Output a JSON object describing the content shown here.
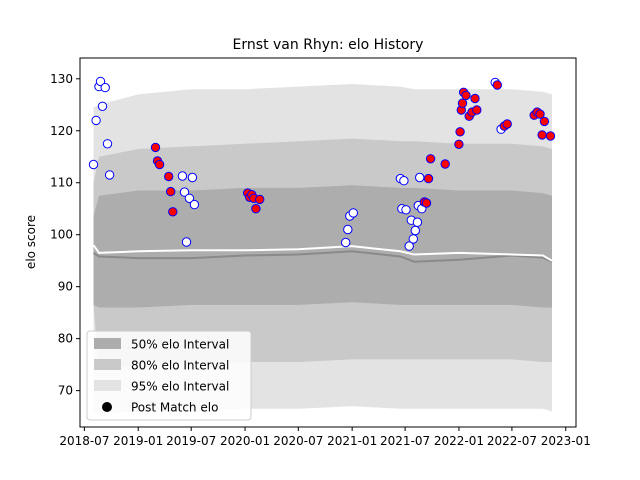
{
  "chart_data": {
    "type": "scatter",
    "title": "Ernst van Rhyn: elo History",
    "xlabel": "",
    "ylabel": "elo score",
    "xlim": [
      "2018-06-16",
      "2023-02-05"
    ],
    "ylim": [
      63,
      134
    ],
    "x_ticks": [
      "2018-07",
      "2019-01",
      "2019-07",
      "2020-01",
      "2020-07",
      "2021-01",
      "2021-07",
      "2022-01",
      "2022-07",
      "2023-01"
    ],
    "y_ticks": [
      70,
      80,
      90,
      100,
      110,
      120,
      130
    ],
    "grid": false,
    "legend": {
      "placement": "lower-left",
      "entries": [
        "50% elo Interval",
        "80% elo Interval",
        "95% elo Interval",
        "Post Match elo"
      ]
    },
    "colors": {
      "band_50": "#adadad",
      "band_80": "#c9c9c9",
      "band_95": "#e3e3e3",
      "median_line": "#8a8a8a",
      "mean_line": "#ffffff",
      "point_edge": "#0000ff",
      "point_fill_win": "#ff0000",
      "point_fill_other": "#ffffff"
    },
    "intervals": {
      "x": [
        "2018-08-01",
        "2018-08-20",
        "2019-01-01",
        "2019-07-01",
        "2020-01-01",
        "2020-07-01",
        "2021-01-01",
        "2021-06-15",
        "2021-08-01",
        "2022-01-01",
        "2022-07-01",
        "2022-10-15",
        "2022-11-15"
      ],
      "p95_low": [
        65.5,
        65.5,
        66.0,
        66.0,
        66.5,
        66.5,
        67.0,
        66.5,
        66.5,
        66.5,
        66.5,
        66.5,
        66.0
      ],
      "p95_high": [
        124.5,
        125.0,
        127.0,
        128.0,
        128.0,
        128.5,
        129.0,
        128.5,
        128.0,
        128.0,
        128.0,
        127.5,
        127.0
      ],
      "p80_low": [
        86.5,
        74.0,
        75.0,
        75.5,
        75.5,
        75.5,
        76.0,
        76.0,
        76.0,
        76.0,
        76.0,
        75.5,
        75.5
      ],
      "p80_high": [
        110.0,
        115.0,
        116.5,
        117.0,
        117.5,
        118.0,
        118.5,
        118.0,
        118.0,
        117.5,
        117.5,
        117.0,
        116.5
      ],
      "p50_low": [
        86.5,
        86.0,
        86.0,
        86.5,
        86.5,
        86.5,
        87.0,
        86.5,
        86.5,
        86.5,
        86.5,
        86.0,
        86.0
      ],
      "p50_high": [
        103.5,
        107.5,
        108.5,
        108.5,
        109.0,
        109.0,
        109.5,
        109.0,
        109.0,
        108.5,
        108.5,
        108.0,
        107.5
      ],
      "median": [
        96.5,
        95.8,
        95.5,
        95.5,
        96.0,
        96.2,
        96.8,
        95.8,
        94.8,
        95.2,
        96.0,
        95.6,
        94.8
      ],
      "mean": [
        98.0,
        96.5,
        96.8,
        97.0,
        97.0,
        97.2,
        97.8,
        96.8,
        96.2,
        96.5,
        96.2,
        96.0,
        95.0
      ]
    },
    "series": [
      {
        "name": "Post Match elo",
        "points": [
          {
            "x": "2018-08-01",
            "y": 113.5,
            "win": false
          },
          {
            "x": "2018-08-10",
            "y": 122.0,
            "win": false
          },
          {
            "x": "2018-08-20",
            "y": 128.5,
            "win": false
          },
          {
            "x": "2018-08-25",
            "y": 129.5,
            "win": false
          },
          {
            "x": "2018-09-01",
            "y": 124.7,
            "win": false
          },
          {
            "x": "2018-09-10",
            "y": 128.3,
            "win": false
          },
          {
            "x": "2018-09-18",
            "y": 117.5,
            "win": false
          },
          {
            "x": "2018-09-25",
            "y": 111.5,
            "win": false
          },
          {
            "x": "2019-03-01",
            "y": 116.8,
            "win": true
          },
          {
            "x": "2019-03-08",
            "y": 114.2,
            "win": true
          },
          {
            "x": "2019-03-15",
            "y": 113.5,
            "win": true
          },
          {
            "x": "2019-04-15",
            "y": 111.2,
            "win": true
          },
          {
            "x": "2019-04-22",
            "y": 108.3,
            "win": true
          },
          {
            "x": "2019-04-29",
            "y": 104.4,
            "win": true
          },
          {
            "x": "2019-06-01",
            "y": 111.3,
            "win": false
          },
          {
            "x": "2019-06-08",
            "y": 108.2,
            "win": false
          },
          {
            "x": "2019-06-15",
            "y": 98.6,
            "win": false
          },
          {
            "x": "2019-06-25",
            "y": 107.0,
            "win": false
          },
          {
            "x": "2019-07-05",
            "y": 111.0,
            "win": false
          },
          {
            "x": "2019-07-12",
            "y": 105.8,
            "win": false
          },
          {
            "x": "2020-01-10",
            "y": 108.0,
            "win": true
          },
          {
            "x": "2020-01-17",
            "y": 107.2,
            "win": true
          },
          {
            "x": "2020-01-24",
            "y": 107.7,
            "win": true
          },
          {
            "x": "2020-01-31",
            "y": 107.0,
            "win": true
          },
          {
            "x": "2020-02-07",
            "y": 105.0,
            "win": true
          },
          {
            "x": "2020-02-20",
            "y": 106.8,
            "win": true
          },
          {
            "x": "2020-12-10",
            "y": 98.5,
            "win": false
          },
          {
            "x": "2020-12-17",
            "y": 101.0,
            "win": false
          },
          {
            "x": "2020-12-24",
            "y": 103.6,
            "win": false
          },
          {
            "x": "2021-01-05",
            "y": 104.2,
            "win": false
          },
          {
            "x": "2021-06-15",
            "y": 110.8,
            "win": false
          },
          {
            "x": "2021-06-20",
            "y": 105.0,
            "win": false
          },
          {
            "x": "2021-06-27",
            "y": 110.4,
            "win": false
          },
          {
            "x": "2021-07-04",
            "y": 104.8,
            "win": false
          },
          {
            "x": "2021-07-15",
            "y": 97.8,
            "win": false
          },
          {
            "x": "2021-07-22",
            "y": 102.8,
            "win": false
          },
          {
            "x": "2021-07-29",
            "y": 99.2,
            "win": false
          },
          {
            "x": "2021-08-05",
            "y": 100.8,
            "win": false
          },
          {
            "x": "2021-08-12",
            "y": 102.4,
            "win": false
          },
          {
            "x": "2021-08-15",
            "y": 105.6,
            "win": false
          },
          {
            "x": "2021-08-20",
            "y": 111.0,
            "win": false
          },
          {
            "x": "2021-08-27",
            "y": 105.0,
            "win": false
          },
          {
            "x": "2021-09-05",
            "y": 106.3,
            "win": true
          },
          {
            "x": "2021-09-12",
            "y": 106.1,
            "win": true
          },
          {
            "x": "2021-09-19",
            "y": 110.8,
            "win": true
          },
          {
            "x": "2021-09-26",
            "y": 114.6,
            "win": true
          },
          {
            "x": "2021-11-15",
            "y": 113.6,
            "win": true
          },
          {
            "x": "2022-01-01",
            "y": 117.4,
            "win": true
          },
          {
            "x": "2022-01-05",
            "y": 119.8,
            "win": true
          },
          {
            "x": "2022-01-09",
            "y": 124.0,
            "win": true
          },
          {
            "x": "2022-01-13",
            "y": 125.3,
            "win": true
          },
          {
            "x": "2022-01-17",
            "y": 127.4,
            "win": true
          },
          {
            "x": "2022-01-25",
            "y": 126.8,
            "win": true
          },
          {
            "x": "2022-02-05",
            "y": 122.8,
            "win": true
          },
          {
            "x": "2022-02-15",
            "y": 123.6,
            "win": true
          },
          {
            "x": "2022-02-25",
            "y": 126.2,
            "win": true
          },
          {
            "x": "2022-03-03",
            "y": 124.0,
            "win": true
          },
          {
            "x": "2022-05-05",
            "y": 129.3,
            "win": false
          },
          {
            "x": "2022-05-12",
            "y": 128.8,
            "win": true
          },
          {
            "x": "2022-05-25",
            "y": 120.3,
            "win": false
          },
          {
            "x": "2022-06-05",
            "y": 120.9,
            "win": true
          },
          {
            "x": "2022-06-15",
            "y": 121.3,
            "win": true
          },
          {
            "x": "2022-09-15",
            "y": 123.0,
            "win": true
          },
          {
            "x": "2022-09-25",
            "y": 123.6,
            "win": true
          },
          {
            "x": "2022-10-05",
            "y": 123.2,
            "win": true
          },
          {
            "x": "2022-10-12",
            "y": 119.2,
            "win": true
          },
          {
            "x": "2022-10-20",
            "y": 121.8,
            "win": true
          },
          {
            "x": "2022-11-10",
            "y": 119.0,
            "win": true
          }
        ]
      }
    ]
  }
}
